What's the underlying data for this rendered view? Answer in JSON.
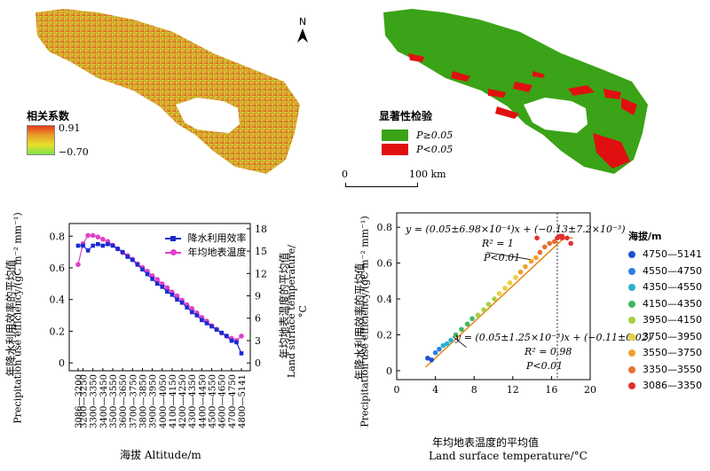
{
  "map_left": {
    "legend_title": "相关系数",
    "legend_max": "0.91",
    "legend_min": "−0.70",
    "gradient_colors": [
      "#f7f01a",
      "#e8801a",
      "#d92a1a",
      "#7ee04a"
    ]
  },
  "map_right": {
    "north_label": "N",
    "legend_title": "显著性检验",
    "legend_items": [
      {
        "label": "P≥0.05",
        "color": "#3aa317"
      },
      {
        "label": "P<0.05",
        "color": "#e01010"
      }
    ],
    "scale_start": "0",
    "scale_end": "100 km"
  },
  "colors": {
    "pue": "#1a2bd0",
    "lst": "#e040c8",
    "fit": "#e8800a",
    "map_green": "#3aa317",
    "map_red": "#e01010"
  },
  "chart_data": [
    {
      "type": "line",
      "xlabel": "海拔 Altitude/m",
      "ylabel_left_cn": "年降水利用效率的平均值",
      "ylabel_left_en": "Precipitation use efficiency/(gC m⁻² mm⁻¹)",
      "ylabel_right_cn": "年均地表温度的平均值",
      "ylabel_right_en": "Land surface temperature/°C",
      "ylim_left": [
        -0.05,
        0.88
      ],
      "yticks_left": [
        "0",
        "0.2",
        "0.4",
        "0.6",
        "0.8"
      ],
      "ylim_right": [
        -1.05,
        18.7
      ],
      "yticks_right": [
        "0",
        "3",
        "6",
        "9",
        "12",
        "15",
        "18"
      ],
      "categories": [
        "3086—3200",
        "3200—3250",
        "3250—3300",
        "3300—3350",
        "3350—3400",
        "3400—3450",
        "3450—3500",
        "3500—3550",
        "3550—3600",
        "3600—3650",
        "3650—3700",
        "3700—3750",
        "3750—3800",
        "3800—3850",
        "3850—3900",
        "3900—3950",
        "3950—4000",
        "4000—4050",
        "4050—4100",
        "4100—4150",
        "4150—4200",
        "4200—4250",
        "4250—4300",
        "4300—4350",
        "4350—4400",
        "4400—4450",
        "4450—4500",
        "4500—4550",
        "4550—4600",
        "4600—4650",
        "4650—4700",
        "4700—4750",
        "4750—4800",
        "4800—5141"
      ],
      "tick_labels": [
        "3086—3200",
        "3200—3250",
        "3300—3350",
        "3400—3450",
        "3500—3550",
        "3600—3650",
        "3700—3750",
        "3800—3850",
        "3900—3950",
        "4000—4050",
        "4100—4150",
        "4200—4250",
        "4300—4350",
        "4400—4450",
        "4500—4550",
        "4600—4650",
        "4700—4750",
        "4800—5141"
      ],
      "series": [
        {
          "name": "降水利用效率",
          "axis": "left",
          "values": [
            0.74,
            0.74,
            0.71,
            0.74,
            0.75,
            0.74,
            0.75,
            0.74,
            0.72,
            0.7,
            0.67,
            0.65,
            0.62,
            0.59,
            0.56,
            0.53,
            0.5,
            0.48,
            0.45,
            0.43,
            0.4,
            0.38,
            0.35,
            0.32,
            0.3,
            0.27,
            0.25,
            0.23,
            0.21,
            0.19,
            0.17,
            0.14,
            0.13,
            0.06
          ]
        },
        {
          "name": "年均地表温度",
          "axis": "right",
          "values": [
            13.2,
            16.0,
            17.1,
            17.1,
            16.9,
            16.6,
            16.3,
            15.8,
            15.3,
            14.8,
            14.4,
            13.9,
            13.3,
            12.8,
            12.3,
            11.7,
            11.2,
            10.6,
            10.1,
            9.5,
            9.0,
            8.4,
            7.8,
            7.3,
            6.7,
            6.1,
            5.6,
            5.0,
            4.5,
            4.0,
            3.6,
            3.3,
            3.0,
            3.6
          ]
        }
      ]
    },
    {
      "type": "scatter",
      "xlabel_cn": "年均地表温度的平均值",
      "xlabel_en": "Land surface temperature/°C",
      "ylabel_cn": "年降水利用效率的平均值",
      "ylabel_en": "Precipitation use efficiency/(gC m⁻² mm⁻¹)",
      "xlim": [
        0,
        20
      ],
      "xticks": [
        "0",
        "4",
        "8",
        "12",
        "16",
        "20"
      ],
      "ylim": [
        -0.05,
        0.88
      ],
      "yticks": [
        "0",
        "0.2",
        "0.4",
        "0.6",
        "0.8"
      ],
      "vline_x": 16.6,
      "legend_title": "海拔/m",
      "legend": [
        {
          "label": "4750—5141",
          "color": "#1f50d8"
        },
        {
          "label": "4550—4750",
          "color": "#2a7fe0"
        },
        {
          "label": "4350—4550",
          "color": "#2ab0d0"
        },
        {
          "label": "4150—4350",
          "color": "#40b860"
        },
        {
          "label": "3950—4150",
          "color": "#a8d040"
        },
        {
          "label": "3750—3950",
          "color": "#e8d040"
        },
        {
          "label": "3550—3750",
          "color": "#f0a030"
        },
        {
          "label": "3350—3550",
          "color": "#e87030"
        },
        {
          "label": "3086—3350",
          "color": "#e03030"
        }
      ],
      "eq1": "y = (0.05±6.98×10⁻⁴)x + (−0.13±7.2×10⁻³)",
      "eq1_r2": "R² = 1",
      "eq1_p": "P<0.01",
      "eq2": "y = (0.05±1.25×10⁻³)x + (−0.11±0.02)",
      "eq2_r2": "R² = 0.98",
      "eq2_p": "P<0.01",
      "points": [
        {
          "x": 3.2,
          "y": 0.07,
          "group": 0
        },
        {
          "x": 3.6,
          "y": 0.06,
          "group": 0
        },
        {
          "x": 4.0,
          "y": 0.1,
          "group": 1
        },
        {
          "x": 4.4,
          "y": 0.12,
          "group": 1
        },
        {
          "x": 4.8,
          "y": 0.14,
          "group": 2
        },
        {
          "x": 5.2,
          "y": 0.15,
          "group": 2
        },
        {
          "x": 5.6,
          "y": 0.17,
          "group": 2
        },
        {
          "x": 6.1,
          "y": 0.2,
          "group": 3
        },
        {
          "x": 6.7,
          "y": 0.23,
          "group": 3
        },
        {
          "x": 7.3,
          "y": 0.26,
          "group": 3
        },
        {
          "x": 7.8,
          "y": 0.29,
          "group": 3
        },
        {
          "x": 8.4,
          "y": 0.31,
          "group": 4
        },
        {
          "x": 9.0,
          "y": 0.34,
          "group": 4
        },
        {
          "x": 9.5,
          "y": 0.37,
          "group": 4
        },
        {
          "x": 10.1,
          "y": 0.4,
          "group": 4
        },
        {
          "x": 10.6,
          "y": 0.43,
          "group": 5
        },
        {
          "x": 11.2,
          "y": 0.46,
          "group": 5
        },
        {
          "x": 11.7,
          "y": 0.49,
          "group": 5
        },
        {
          "x": 12.3,
          "y": 0.52,
          "group": 5
        },
        {
          "x": 12.8,
          "y": 0.55,
          "group": 6
        },
        {
          "x": 13.3,
          "y": 0.58,
          "group": 6
        },
        {
          "x": 13.9,
          "y": 0.61,
          "group": 6
        },
        {
          "x": 14.4,
          "y": 0.63,
          "group": 6
        },
        {
          "x": 14.8,
          "y": 0.66,
          "group": 7
        },
        {
          "x": 15.3,
          "y": 0.69,
          "group": 7
        },
        {
          "x": 15.8,
          "y": 0.71,
          "group": 7
        },
        {
          "x": 16.3,
          "y": 0.72,
          "group": 7
        },
        {
          "x": 16.6,
          "y": 0.74,
          "group": 8
        },
        {
          "x": 16.9,
          "y": 0.75,
          "group": 8
        },
        {
          "x": 17.1,
          "y": 0.75,
          "group": 8
        },
        {
          "x": 17.1,
          "y": 0.74,
          "group": 8
        },
        {
          "x": 17.6,
          "y": 0.74,
          "group": 8
        },
        {
          "x": 18.0,
          "y": 0.71,
          "group": 8
        },
        {
          "x": 14.5,
          "y": 0.74,
          "group": 8
        }
      ],
      "fit_lines": [
        {
          "x": [
            3.0,
            17.1
          ],
          "y": [
            0.02,
            0.73
          ]
        },
        {
          "x": [
            16.6,
            18.2
          ],
          "y": [
            0.74,
            0.74
          ]
        }
      ]
    }
  ]
}
